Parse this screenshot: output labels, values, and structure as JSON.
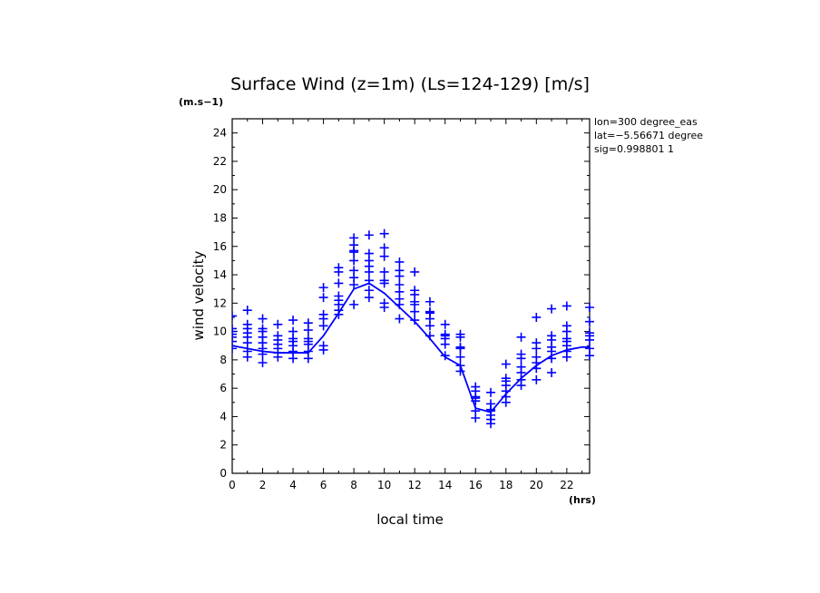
{
  "chart_data": {
    "type": "scatter",
    "title": "Surface Wind (z=1m) (Ls=124-129) [m/s]",
    "xlabel": "local time",
    "ylabel": "wind velocity",
    "x_unit": "(hrs)",
    "y_unit": "(m.s−1)",
    "xlim": [
      0,
      23.5
    ],
    "ylim": [
      0,
      25
    ],
    "xticks": [
      0,
      2,
      4,
      6,
      8,
      10,
      12,
      14,
      16,
      18,
      20,
      22
    ],
    "yticks": [
      0,
      2,
      4,
      6,
      8,
      10,
      12,
      14,
      16,
      18,
      20,
      22,
      24
    ],
    "grid": false,
    "info_lines": [
      "lon=300 degree_eas",
      "lat=−5.56671 degree",
      "sig=0.998801 1"
    ],
    "series": [
      {
        "kind": "mean_line",
        "x": [
          0,
          1,
          2,
          3,
          4,
          5,
          6,
          7,
          8,
          9,
          10,
          11,
          12,
          13,
          14,
          15,
          16,
          17,
          18,
          19,
          20,
          21,
          22,
          23,
          23.5
        ],
        "y": [
          9.0,
          8.8,
          8.6,
          8.5,
          8.5,
          8.5,
          9.7,
          11.3,
          13.0,
          13.4,
          12.7,
          11.7,
          10.7,
          9.5,
          8.2,
          7.6,
          4.6,
          4.3,
          5.6,
          6.7,
          7.6,
          8.3,
          8.7,
          8.9,
          8.9
        ]
      },
      {
        "kind": "samples",
        "points": [
          [
            0,
            8.8
          ],
          [
            0,
            9.3
          ],
          [
            0,
            9.6
          ],
          [
            0,
            9.8
          ],
          [
            0,
            10.0
          ],
          [
            0,
            10.2
          ],
          [
            0,
            11.1
          ],
          [
            1,
            8.2
          ],
          [
            1,
            8.6
          ],
          [
            1,
            9.2
          ],
          [
            1,
            9.6
          ],
          [
            1,
            9.9
          ],
          [
            1,
            10.2
          ],
          [
            1,
            10.5
          ],
          [
            1,
            11.5
          ],
          [
            2,
            7.8
          ],
          [
            2,
            8.4
          ],
          [
            2,
            8.8
          ],
          [
            2,
            9.2
          ],
          [
            2,
            9.6
          ],
          [
            2,
            10.0
          ],
          [
            2,
            10.2
          ],
          [
            2,
            10.9
          ],
          [
            3,
            8.2
          ],
          [
            3,
            8.5
          ],
          [
            3,
            8.8
          ],
          [
            3,
            9.1
          ],
          [
            3,
            9.4
          ],
          [
            3,
            9.7
          ],
          [
            3,
            10.5
          ],
          [
            4,
            8.1
          ],
          [
            4,
            8.6
          ],
          [
            4,
            9.0
          ],
          [
            4,
            9.3
          ],
          [
            4,
            9.5
          ],
          [
            4,
            10.0
          ],
          [
            4,
            10.8
          ],
          [
            5,
            8.1
          ],
          [
            5,
            8.6
          ],
          [
            5,
            9.1
          ],
          [
            5,
            9.3
          ],
          [
            5,
            9.5
          ],
          [
            5,
            10.1
          ],
          [
            5,
            10.6
          ],
          [
            6,
            8.7
          ],
          [
            6,
            9.0
          ],
          [
            6,
            10.4
          ],
          [
            6,
            10.9
          ],
          [
            6,
            11.2
          ],
          [
            6,
            12.4
          ],
          [
            6,
            13.1
          ],
          [
            7,
            11.2
          ],
          [
            7,
            11.5
          ],
          [
            7,
            11.9
          ],
          [
            7,
            12.2
          ],
          [
            7,
            12.5
          ],
          [
            7,
            13.4
          ],
          [
            7,
            14.2
          ],
          [
            7,
            14.5
          ],
          [
            8,
            11.9
          ],
          [
            8,
            13.3
          ],
          [
            8,
            13.8
          ],
          [
            8,
            14.3
          ],
          [
            8,
            15.0
          ],
          [
            8,
            15.6
          ],
          [
            8,
            15.7
          ],
          [
            8,
            16.1
          ],
          [
            8,
            16.6
          ],
          [
            9,
            12.4
          ],
          [
            9,
            12.9
          ],
          [
            9,
            13.6
          ],
          [
            9,
            14.2
          ],
          [
            9,
            14.6
          ],
          [
            9,
            15.0
          ],
          [
            9,
            15.5
          ],
          [
            9,
            16.8
          ],
          [
            10,
            11.7
          ],
          [
            10,
            12.0
          ],
          [
            10,
            13.4
          ],
          [
            10,
            13.6
          ],
          [
            10,
            14.2
          ],
          [
            10,
            15.3
          ],
          [
            10,
            15.9
          ],
          [
            10,
            16.9
          ],
          [
            11,
            10.9
          ],
          [
            11,
            11.9
          ],
          [
            11,
            12.3
          ],
          [
            11,
            12.8
          ],
          [
            11,
            13.3
          ],
          [
            11,
            13.9
          ],
          [
            11,
            14.3
          ],
          [
            11,
            14.9
          ],
          [
            12,
            10.8
          ],
          [
            12,
            11.4
          ],
          [
            12,
            11.9
          ],
          [
            12,
            12.1
          ],
          [
            12,
            12.6
          ],
          [
            12,
            12.9
          ],
          [
            12,
            14.2
          ],
          [
            13,
            9.7
          ],
          [
            13,
            10.4
          ],
          [
            13,
            10.9
          ],
          [
            13,
            11.3
          ],
          [
            13,
            11.4
          ],
          [
            13,
            12.1
          ],
          [
            14,
            8.3
          ],
          [
            14,
            9.1
          ],
          [
            14,
            9.5
          ],
          [
            14,
            9.7
          ],
          [
            14,
            9.8
          ],
          [
            14,
            10.5
          ],
          [
            15,
            7.2
          ],
          [
            15,
            7.6
          ],
          [
            15,
            8.2
          ],
          [
            15,
            8.8
          ],
          [
            15,
            8.9
          ],
          [
            15,
            9.6
          ],
          [
            15,
            9.8
          ],
          [
            16,
            3.9
          ],
          [
            16,
            4.4
          ],
          [
            16,
            5.1
          ],
          [
            16,
            5.3
          ],
          [
            16,
            5.4
          ],
          [
            16,
            5.8
          ],
          [
            16,
            6.1
          ],
          [
            17,
            3.5
          ],
          [
            17,
            3.8
          ],
          [
            17,
            4.1
          ],
          [
            17,
            4.4
          ],
          [
            17,
            4.5
          ],
          [
            17,
            4.9
          ],
          [
            17,
            5.7
          ],
          [
            18,
            5.0
          ],
          [
            18,
            5.4
          ],
          [
            18,
            5.8
          ],
          [
            18,
            6.2
          ],
          [
            18,
            6.5
          ],
          [
            18,
            6.7
          ],
          [
            18,
            7.7
          ],
          [
            19,
            6.2
          ],
          [
            19,
            6.6
          ],
          [
            19,
            7.1
          ],
          [
            19,
            7.5
          ],
          [
            19,
            8.1
          ],
          [
            19,
            8.4
          ],
          [
            19,
            9.6
          ],
          [
            20,
            6.6
          ],
          [
            20,
            7.4
          ],
          [
            20,
            7.8
          ],
          [
            20,
            8.2
          ],
          [
            20,
            8.8
          ],
          [
            20,
            9.2
          ],
          [
            20,
            11.0
          ],
          [
            21,
            7.1
          ],
          [
            21,
            8.1
          ],
          [
            21,
            8.6
          ],
          [
            21,
            8.9
          ],
          [
            21,
            9.4
          ],
          [
            21,
            9.7
          ],
          [
            21,
            11.6
          ],
          [
            22,
            8.2
          ],
          [
            22,
            8.6
          ],
          [
            22,
            9.0
          ],
          [
            22,
            9.3
          ],
          [
            22,
            9.5
          ],
          [
            22,
            10.0
          ],
          [
            22,
            10.4
          ],
          [
            22,
            11.8
          ],
          [
            23.5,
            8.3
          ],
          [
            23.5,
            8.8
          ],
          [
            23.5,
            9.4
          ],
          [
            23.5,
            9.7
          ],
          [
            23.5,
            9.9
          ],
          [
            23.5,
            10.7
          ],
          [
            23.5,
            11.7
          ]
        ]
      }
    ],
    "colors": {
      "data": "#0000ff",
      "axes": "#000000"
    }
  }
}
